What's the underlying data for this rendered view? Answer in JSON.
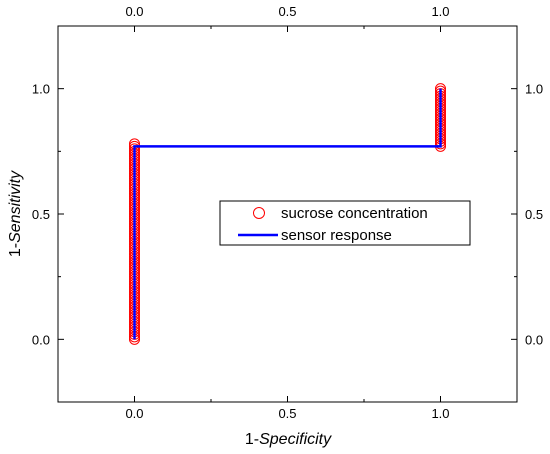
{
  "chart_data": {
    "type": "scatter",
    "title": "",
    "xlabel": {
      "prefix": "1-",
      "emph": "Specificity"
    },
    "ylabel": {
      "prefix": "1-",
      "emph": "Sensitivity"
    },
    "xlim": [
      -0.25,
      1.25
    ],
    "ylim": [
      -0.25,
      1.25
    ],
    "x_ticks": [
      "0.0",
      "0.5",
      "1.0"
    ],
    "y_ticks": [
      "0.0",
      "0.5",
      "1.0"
    ],
    "x_tick_values": [
      0,
      0.5,
      1
    ],
    "y_tick_values": [
      0,
      0.5,
      1
    ],
    "top_axis_ticks": [
      "0.0",
      "0.5",
      "1.0"
    ],
    "right_axis_ticks": [
      "0.0",
      "0.5",
      "1.0"
    ],
    "grid": false,
    "legend_position": "center-right",
    "series": [
      {
        "name": "sucrose concentration",
        "style": "open-circle",
        "color": "#ff0000",
        "x": [
          0,
          0,
          0,
          0,
          0,
          0,
          0,
          0,
          0,
          0,
          0,
          0,
          0,
          0,
          0,
          0,
          0,
          0,
          0,
          0,
          0,
          0,
          0,
          0,
          0,
          0,
          0,
          0,
          0,
          0,
          0,
          0,
          0,
          0,
          0,
          0,
          0,
          0,
          0,
          0,
          0,
          0,
          0,
          0,
          0,
          0,
          0,
          0,
          0,
          0,
          0,
          0,
          0,
          0,
          0,
          0,
          0,
          0,
          0,
          0,
          0,
          0,
          0,
          0,
          0,
          0,
          0,
          0,
          0,
          0,
          0,
          0,
          0,
          0,
          0,
          0,
          0,
          0,
          0,
          1,
          1,
          1,
          1,
          1,
          1,
          1,
          1,
          1,
          1,
          1,
          1,
          1,
          1,
          1,
          1,
          1,
          1,
          1,
          1,
          1,
          1,
          1,
          1
        ],
        "y": [
          0.0,
          0.01,
          0.02,
          0.03,
          0.04,
          0.05,
          0.06,
          0.07,
          0.08,
          0.09,
          0.1,
          0.11,
          0.12,
          0.13,
          0.14,
          0.15,
          0.16,
          0.17,
          0.18,
          0.19,
          0.2,
          0.21,
          0.22,
          0.23,
          0.24,
          0.25,
          0.26,
          0.27,
          0.28,
          0.29,
          0.3,
          0.31,
          0.32,
          0.33,
          0.34,
          0.35,
          0.36,
          0.37,
          0.38,
          0.39,
          0.4,
          0.41,
          0.42,
          0.43,
          0.44,
          0.45,
          0.46,
          0.47,
          0.48,
          0.49,
          0.5,
          0.51,
          0.52,
          0.53,
          0.54,
          0.55,
          0.56,
          0.57,
          0.58,
          0.59,
          0.6,
          0.61,
          0.62,
          0.63,
          0.64,
          0.65,
          0.66,
          0.67,
          0.68,
          0.69,
          0.7,
          0.71,
          0.72,
          0.73,
          0.74,
          0.75,
          0.76,
          0.77,
          0.78,
          0.77,
          0.78,
          0.79,
          0.8,
          0.81,
          0.82,
          0.83,
          0.84,
          0.85,
          0.86,
          0.87,
          0.88,
          0.89,
          0.9,
          0.91,
          0.92,
          0.93,
          0.94,
          0.95,
          0.96,
          0.97,
          0.98,
          0.99,
          1.0
        ]
      },
      {
        "name": "sensor response",
        "style": "line",
        "color": "#0000ff",
        "x": [
          0,
          0,
          1,
          1
        ],
        "y": [
          0,
          0.77,
          0.77,
          1.0
        ]
      }
    ]
  }
}
